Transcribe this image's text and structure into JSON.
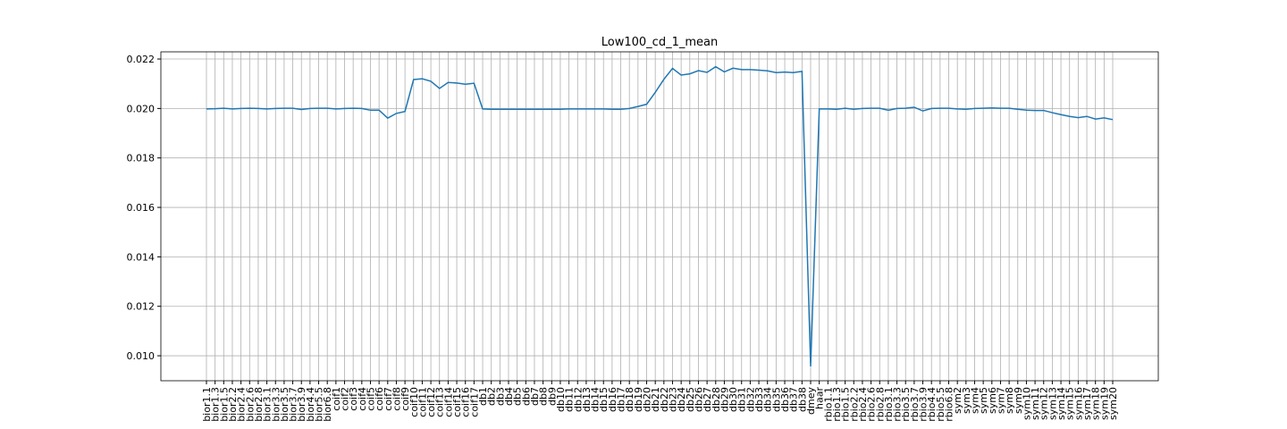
{
  "chart_data": {
    "type": "line",
    "title": "Low100_cd_1_mean",
    "categories": [
      "bior1.1",
      "bior1.3",
      "bior1.5",
      "bior2.2",
      "bior2.4",
      "bior2.6",
      "bior2.8",
      "bior3.1",
      "bior3.3",
      "bior3.5",
      "bior3.7",
      "bior3.9",
      "bior4.4",
      "bior5.5",
      "bior6.8",
      "coif1",
      "coif2",
      "coif3",
      "coif4",
      "coif5",
      "coif6",
      "coif7",
      "coif8",
      "coif9",
      "coif10",
      "coif11",
      "coif12",
      "coif13",
      "coif14",
      "coif15",
      "coif16",
      "coif17",
      "db1",
      "db2",
      "db3",
      "db4",
      "db5",
      "db6",
      "db7",
      "db8",
      "db9",
      "db10",
      "db11",
      "db12",
      "db13",
      "db14",
      "db15",
      "db16",
      "db17",
      "db18",
      "db19",
      "db20",
      "db21",
      "db22",
      "db23",
      "db24",
      "db25",
      "db26",
      "db27",
      "db28",
      "db29",
      "db30",
      "db31",
      "db32",
      "db33",
      "db34",
      "db35",
      "db36",
      "db37",
      "db38",
      "dmey",
      "haar",
      "rbio1.1",
      "rbio1.3",
      "rbio1.5",
      "rbio2.2",
      "rbio2.4",
      "rbio2.6",
      "rbio2.8",
      "rbio3.1",
      "rbio3.3",
      "rbio3.5",
      "rbio3.7",
      "rbio3.9",
      "rbio4.4",
      "rbio5.5",
      "rbio6.8",
      "sym2",
      "sym3",
      "sym4",
      "sym5",
      "sym6",
      "sym7",
      "sym8",
      "sym9",
      "sym10",
      "sym11",
      "sym12",
      "sym13",
      "sym14",
      "sym15",
      "sym16",
      "sym17",
      "sym18",
      "sym19",
      "sym20"
    ],
    "series": [
      {
        "name": "Low100_cd_1_mean",
        "color": "#1f77b4",
        "values": [
          0.01998,
          0.01999,
          0.02001,
          0.01998,
          0.02,
          0.02001,
          0.02,
          0.01998,
          0.02,
          0.02001,
          0.02001,
          0.01996,
          0.02,
          0.02001,
          0.02001,
          0.01998,
          0.02,
          0.02001,
          0.02,
          0.01993,
          0.01993,
          0.01961,
          0.0198,
          0.01988,
          0.02117,
          0.0212,
          0.0211,
          0.02081,
          0.02105,
          0.02103,
          0.02098,
          0.02102,
          0.01998,
          0.01997,
          0.01997,
          0.01997,
          0.01997,
          0.01997,
          0.01997,
          0.01997,
          0.01997,
          0.01997,
          0.01998,
          0.01998,
          0.01998,
          0.01998,
          0.01998,
          0.01997,
          0.01997,
          0.02,
          0.02008,
          0.02017,
          0.02065,
          0.02118,
          0.02162,
          0.02135,
          0.0214,
          0.02153,
          0.02146,
          0.02169,
          0.02148,
          0.02163,
          0.02157,
          0.02157,
          0.02155,
          0.02152,
          0.02145,
          0.02147,
          0.02145,
          0.0215,
          0.00957,
          0.01998,
          0.01998,
          0.01997,
          0.02001,
          0.01997,
          0.02,
          0.02001,
          0.02001,
          0.01993,
          0.02,
          0.02001,
          0.02005,
          0.0199,
          0.02,
          0.02001,
          0.02001,
          0.01998,
          0.01997,
          0.02,
          0.02001,
          0.02002,
          0.02001,
          0.02001,
          0.01997,
          0.01993,
          0.01992,
          0.01992,
          0.01983,
          0.01975,
          0.01968,
          0.01963,
          0.01968,
          0.01957,
          0.01962,
          0.01955
        ]
      }
    ],
    "ylim": [
      0.00899,
      0.02229
    ],
    "yticks": [
      {
        "value": 0.01,
        "label": "0.010"
      },
      {
        "value": 0.012,
        "label": "0.012"
      },
      {
        "value": 0.014,
        "label": "0.014"
      },
      {
        "value": 0.016,
        "label": "0.016"
      },
      {
        "value": 0.018,
        "label": "0.018"
      },
      {
        "value": 0.02,
        "label": "0.020"
      },
      {
        "value": 0.022,
        "label": "0.022"
      }
    ],
    "grid": true
  }
}
